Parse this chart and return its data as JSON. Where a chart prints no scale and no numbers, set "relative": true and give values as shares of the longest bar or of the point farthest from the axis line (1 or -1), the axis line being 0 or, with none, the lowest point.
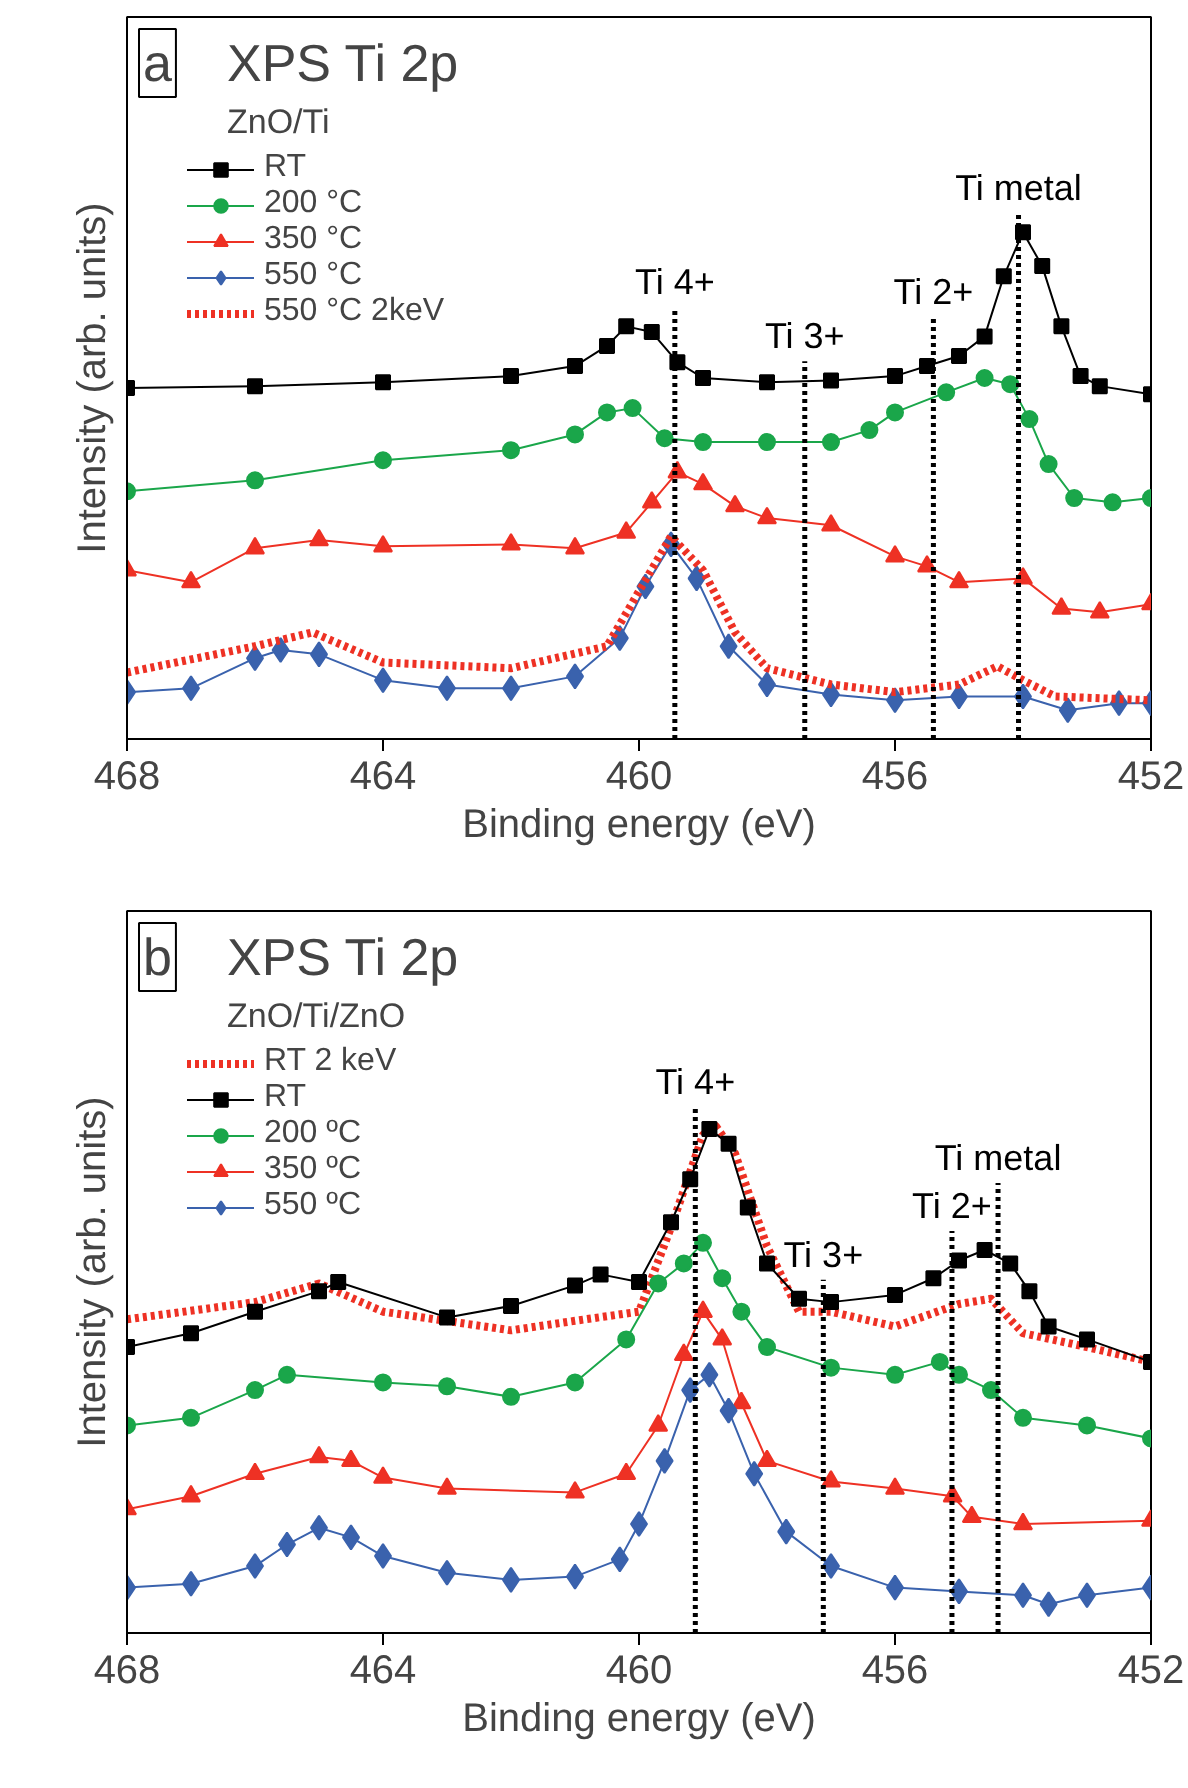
{
  "chart_data": [
    {
      "type": "line",
      "title": "XPS Ti 2p",
      "subtitle": "ZnO/Ti",
      "annotations": [
        "a"
      ],
      "xlabel": "Binding energy (eV)",
      "ylabel": "Intensity (arb. units)",
      "relative": true,
      "tick_labels": "x",
      "legend": "top left",
      "grid": false,
      "xlim": [
        468,
        452
      ],
      "xticks": [
        468,
        464,
        460,
        456,
        452
      ],
      "series": [
        {
          "name": "RT",
          "color": "#000000",
          "marker": "square",
          "x": [
            468,
            466,
            464,
            462,
            461,
            460.5,
            460.2,
            459.8,
            459.4,
            459,
            458,
            457,
            456,
            455.5,
            455,
            454.6,
            454.3,
            454.0,
            453.7,
            453.4,
            453.1,
            452.8,
            452
          ],
          "values": [
            0.674,
            0.678,
            0.686,
            0.699,
            0.72,
            0.762,
            0.803,
            0.791,
            0.728,
            0.695,
            0.686,
            0.69,
            0.699,
            0.72,
            0.741,
            0.782,
            0.908,
            1.0,
            0.929,
            0.803,
            0.699,
            0.678,
            0.661
          ]
        },
        {
          "name": "200 °C",
          "color": "#1aa64a",
          "marker": "circle",
          "x": [
            468,
            466,
            464,
            462,
            461,
            460.5,
            460.1,
            459.6,
            459,
            458,
            457,
            456.4,
            456,
            455.2,
            454.6,
            454.2,
            453.9,
            453.6,
            453.2,
            452.6,
            452
          ],
          "values": [
            0.458,
            0.481,
            0.523,
            0.544,
            0.577,
            0.623,
            0.632,
            0.569,
            0.561,
            0.561,
            0.561,
            0.586,
            0.623,
            0.665,
            0.695,
            0.682,
            0.609,
            0.515,
            0.444,
            0.435,
            0.444
          ]
        },
        {
          "name": "350 °C",
          "color": "#ee3124",
          "marker": "triangle",
          "x": [
            468,
            467,
            466,
            465,
            464,
            462,
            461,
            460.2,
            459.8,
            459.4,
            459,
            458.5,
            458,
            457,
            456,
            455.5,
            455,
            454,
            453.4,
            452.8,
            452
          ],
          "values": [
            0.293,
            0.268,
            0.339,
            0.356,
            0.343,
            0.347,
            0.339,
            0.372,
            0.435,
            0.498,
            0.473,
            0.427,
            0.402,
            0.387,
            0.322,
            0.301,
            0.268,
            0.276,
            0.213,
            0.205,
            0.222
          ]
        },
        {
          "name": "550 °C",
          "color": "#3a62ad",
          "marker": "diamond",
          "x": [
            468,
            467,
            466,
            465.6,
            465,
            464,
            463,
            462,
            461,
            460.3,
            459.9,
            459.5,
            459.1,
            458.6,
            458,
            457,
            456,
            455,
            454,
            453.3,
            452.5,
            452
          ],
          "values": [
            0.038,
            0.046,
            0.109,
            0.126,
            0.117,
            0.063,
            0.046,
            0.046,
            0.071,
            0.151,
            0.259,
            0.347,
            0.276,
            0.134,
            0.054,
            0.033,
            0.021,
            0.029,
            0.029,
            0.0,
            0.015,
            0.015
          ]
        },
        {
          "name": "550 °C 2keV",
          "color": "#ee3124",
          "marker": "none",
          "line_style": "dotted",
          "x": [
            468,
            466,
            465.1,
            464,
            462,
            460.5,
            459.5,
            459,
            458.5,
            458,
            457,
            456,
            455,
            454.4,
            454,
            453.5,
            452
          ],
          "values": [
            0.079,
            0.134,
            0.163,
            0.1,
            0.088,
            0.134,
            0.364,
            0.293,
            0.163,
            0.088,
            0.054,
            0.038,
            0.054,
            0.092,
            0.063,
            0.029,
            0.021
          ]
        }
      ],
      "ref_lines": [
        {
          "axis": "x",
          "value": 459.44,
          "label": "Ti 4+",
          "color": "#000000",
          "line_style": "dotted"
        },
        {
          "axis": "x",
          "value": 457.41,
          "label": "Ti 3+",
          "color": "#000000",
          "line_style": "dotted"
        },
        {
          "axis": "x",
          "value": 455.4,
          "label": "Ti 2+",
          "color": "#000000",
          "line_style": "dotted"
        },
        {
          "axis": "x",
          "value": 454.07,
          "label": "Ti metal",
          "color": "#000000",
          "line_style": "dotted"
        }
      ]
    },
    {
      "type": "line",
      "title": "XPS Ti 2p",
      "subtitle": "ZnO/Ti/ZnO",
      "annotations": [
        "b"
      ],
      "xlabel": "Binding energy (eV)",
      "ylabel": "Intensity (arb. units)",
      "relative": true,
      "tick_labels": "x",
      "legend": "top left",
      "grid": false,
      "xlim": [
        468,
        452
      ],
      "xticks": [
        468,
        464,
        460,
        456,
        452
      ],
      "series": [
        {
          "name": "RT 2 keV",
          "color": "#ee3124",
          "marker": "none",
          "line_style": "dotted",
          "x": [
            468,
            466,
            465,
            464,
            462,
            461,
            460,
            459.5,
            459,
            458.8,
            458.5,
            458,
            457.5,
            457,
            456,
            455,
            454.5,
            454,
            453,
            452
          ],
          "values": [
            0.596,
            0.632,
            0.671,
            0.612,
            0.573,
            0.593,
            0.612,
            0.788,
            0.982,
            1.0,
            0.943,
            0.749,
            0.612,
            0.612,
            0.581,
            0.628,
            0.639,
            0.567,
            0.538,
            0.507
          ]
        },
        {
          "name": "RT",
          "color": "#000000",
          "marker": "square",
          "x": [
            468,
            467,
            466,
            465,
            464.7,
            463,
            462,
            461,
            460.6,
            460,
            459.5,
            459.2,
            458.9,
            458.6,
            458.3,
            458,
            457.5,
            457,
            456,
            455.4,
            455,
            454.6,
            454.2,
            453.9,
            453.6,
            453,
            452
          ],
          "values": [
            0.538,
            0.567,
            0.612,
            0.655,
            0.674,
            0.6,
            0.624,
            0.667,
            0.69,
            0.674,
            0.799,
            0.889,
            0.994,
            0.963,
            0.83,
            0.713,
            0.639,
            0.632,
            0.647,
            0.682,
            0.719,
            0.741,
            0.713,
            0.655,
            0.581,
            0.554,
            0.507
          ]
        },
        {
          "name": "200 ºC",
          "color": "#1aa64a",
          "marker": "circle",
          "x": [
            468,
            467,
            466,
            465.5,
            464,
            463,
            462,
            461,
            460.2,
            459.7,
            459.3,
            459.0,
            458.7,
            458.4,
            458,
            457,
            456,
            455.3,
            455,
            454.5,
            454,
            453,
            452
          ],
          "values": [
            0.374,
            0.39,
            0.448,
            0.48,
            0.464,
            0.456,
            0.434,
            0.464,
            0.554,
            0.671,
            0.713,
            0.756,
            0.682,
            0.612,
            0.538,
            0.495,
            0.48,
            0.507,
            0.48,
            0.448,
            0.39,
            0.374,
            0.347
          ]
        },
        {
          "name": "350 ºC",
          "color": "#ee3124",
          "marker": "triangle",
          "x": [
            468,
            467,
            466,
            465,
            464.5,
            464,
            463,
            461,
            460.2,
            459.7,
            459.3,
            459.0,
            458.7,
            458.4,
            458,
            457,
            456,
            455.1,
            454.8,
            454,
            452
          ],
          "values": [
            0.199,
            0.226,
            0.273,
            0.308,
            0.3,
            0.265,
            0.242,
            0.234,
            0.273,
            0.374,
            0.522,
            0.612,
            0.554,
            0.421,
            0.3,
            0.257,
            0.242,
            0.226,
            0.183,
            0.168,
            0.175
          ]
        },
        {
          "name": "550 ºC",
          "color": "#3a62ad",
          "marker": "diamond",
          "x": [
            468,
            467,
            466,
            465.5,
            465,
            464.5,
            464,
            463,
            462,
            461,
            460.3,
            460,
            459.6,
            459.2,
            458.9,
            458.6,
            458.2,
            457.7,
            457,
            456,
            455,
            454,
            453.6,
            453,
            452
          ],
          "values": [
            0.035,
            0.043,
            0.08,
            0.125,
            0.16,
            0.14,
            0.101,
            0.066,
            0.051,
            0.058,
            0.094,
            0.168,
            0.3,
            0.448,
            0.48,
            0.405,
            0.273,
            0.152,
            0.08,
            0.035,
            0.027,
            0.019,
            0.0,
            0.019,
            0.035
          ]
        }
      ],
      "ref_lines": [
        {
          "axis": "x",
          "value": 459.12,
          "label": "Ti 4+",
          "color": "#000000",
          "line_style": "dotted"
        },
        {
          "axis": "x",
          "value": 457.12,
          "label": "Ti 3+",
          "color": "#000000",
          "line_style": "dotted"
        },
        {
          "axis": "x",
          "value": 455.11,
          "label": "Ti 2+",
          "color": "#000000",
          "line_style": "dotted"
        },
        {
          "axis": "x",
          "value": 454.39,
          "label": "Ti metal",
          "color": "#000000",
          "line_style": "dotted"
        }
      ]
    }
  ]
}
